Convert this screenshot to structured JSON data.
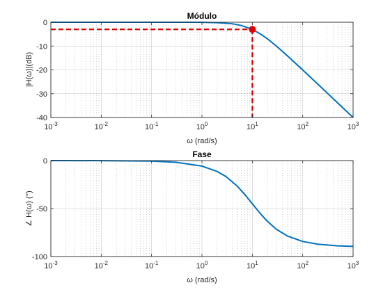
{
  "colors": {
    "series": "#0072bd",
    "marker": "#e00000"
  },
  "chart_data": [
    {
      "type": "line",
      "title": "Módulo",
      "xlabel": "ω (rad/s)",
      "ylabel": "|H(ω)|(dB)",
      "xscale": "log",
      "xlim": [
        0.001,
        1000
      ],
      "ylim": [
        -40,
        0
      ],
      "xticks": [
        0.001,
        0.01,
        0.1,
        1,
        10,
        100,
        1000
      ],
      "xtick_labels": [
        {
          "base": "10",
          "exp": "-3"
        },
        {
          "base": "10",
          "exp": "-2"
        },
        {
          "base": "10",
          "exp": "-1"
        },
        {
          "base": "10",
          "exp": "0"
        },
        {
          "base": "10",
          "exp": "1"
        },
        {
          "base": "10",
          "exp": "2"
        },
        {
          "base": "10",
          "exp": "3"
        }
      ],
      "yticks": [
        "-40",
        "-30",
        "-20",
        "-10",
        "0"
      ],
      "grid": true,
      "series": [
        {
          "x": [
            0.001,
            0.01,
            0.1,
            0.5,
            1,
            2,
            4,
            6,
            10,
            15,
            20,
            30,
            50,
            100,
            200,
            500,
            1000
          ],
          "y": [
            0,
            0,
            0,
            -0.01,
            -0.04,
            -0.17,
            -0.64,
            -1.34,
            -3.01,
            -5.12,
            -6.99,
            -10.0,
            -14.15,
            -20.04,
            -26.03,
            -33.98,
            -40.0
          ]
        }
      ],
      "annotation": {
        "x": 10,
        "y": -3,
        "style": "dashed-reference-with-circle-marker"
      }
    },
    {
      "type": "line",
      "title": "Fase",
      "xlabel": "ω (rad/s)",
      "ylabel": "∠ H(ω) (°)",
      "xscale": "log",
      "xlim": [
        0.001,
        1000
      ],
      "ylim": [
        -100,
        0
      ],
      "xticks": [
        0.001,
        0.01,
        0.1,
        1,
        10,
        100,
        1000
      ],
      "xtick_labels": [
        {
          "base": "10",
          "exp": "-3"
        },
        {
          "base": "10",
          "exp": "-2"
        },
        {
          "base": "10",
          "exp": "-1"
        },
        {
          "base": "10",
          "exp": "0"
        },
        {
          "base": "10",
          "exp": "1"
        },
        {
          "base": "10",
          "exp": "2"
        },
        {
          "base": "10",
          "exp": "3"
        }
      ],
      "yticks": [
        "-100",
        "-50",
        "0"
      ],
      "grid": true,
      "series": [
        {
          "x": [
            0.001,
            0.01,
            0.1,
            0.3,
            1,
            2,
            3,
            5,
            7,
            10,
            15,
            20,
            30,
            50,
            100,
            200,
            500,
            1000
          ],
          "y": [
            -0.01,
            -0.06,
            -0.57,
            -1.72,
            -5.71,
            -11.31,
            -16.7,
            -26.57,
            -34.99,
            -45.0,
            -56.31,
            -63.43,
            -71.57,
            -78.69,
            -84.29,
            -87.14,
            -88.85,
            -89.43
          ]
        }
      ]
    }
  ]
}
